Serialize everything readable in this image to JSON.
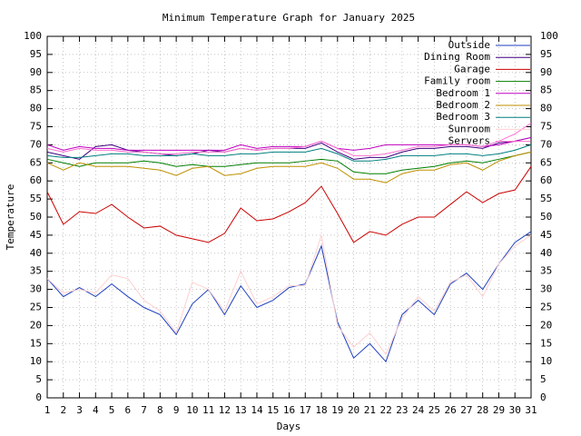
{
  "chart_data": {
    "type": "line",
    "title": "Minimum Temperature Graph for January 2025",
    "xlabel": "Days",
    "ylabel": "Temperature",
    "x": [
      1,
      2,
      3,
      4,
      5,
      6,
      7,
      8,
      9,
      10,
      11,
      12,
      13,
      14,
      15,
      16,
      17,
      18,
      19,
      20,
      21,
      22,
      23,
      24,
      25,
      26,
      27,
      28,
      29,
      30,
      31
    ],
    "xlim": [
      1,
      31
    ],
    "xticks": [
      1,
      2,
      3,
      4,
      5,
      6,
      7,
      8,
      9,
      10,
      11,
      12,
      13,
      14,
      15,
      16,
      17,
      18,
      19,
      20,
      21,
      22,
      23,
      24,
      25,
      26,
      27,
      28,
      29,
      30,
      31
    ],
    "ylim": [
      0,
      100
    ],
    "yticks": [
      0,
      5,
      10,
      15,
      20,
      25,
      30,
      35,
      40,
      45,
      50,
      55,
      60,
      65,
      70,
      75,
      80,
      85,
      90,
      95,
      100
    ],
    "y2lim": [
      0,
      100
    ],
    "y2ticks": [
      0,
      5,
      10,
      15,
      20,
      25,
      30,
      35,
      40,
      45,
      50,
      55,
      60,
      65,
      70,
      75,
      80,
      85,
      90,
      95,
      100
    ],
    "grid": true,
    "legend": "upper right",
    "series": [
      {
        "name": "Outside",
        "color": "#1f3fbf",
        "values": [
          33,
          28,
          30.5,
          28,
          31.5,
          28,
          25,
          23,
          17.5,
          26,
          30,
          23,
          31,
          25,
          27,
          30.5,
          31.5,
          42,
          21,
          11,
          15,
          10,
          23,
          27,
          23,
          31.5,
          34.5,
          30,
          37,
          43,
          46
        ]
      },
      {
        "name": "Dining Room",
        "color": "#3f007f",
        "values": [
          68,
          67,
          66,
          69.5,
          70,
          68.5,
          68,
          67.5,
          67,
          67.5,
          68.5,
          68,
          69,
          68.5,
          69,
          69,
          69,
          70.5,
          68,
          66,
          66.5,
          66.5,
          68,
          69,
          69,
          69.5,
          69.5,
          69,
          70.5,
          71,
          72
        ]
      },
      {
        "name": "Garage",
        "color": "#cc0000",
        "values": [
          57,
          48,
          51.5,
          51,
          53.5,
          50,
          47,
          47.5,
          45,
          44,
          43,
          45.5,
          52.5,
          49,
          49.5,
          51.5,
          54,
          58.5,
          51,
          43,
          46,
          45,
          48,
          50,
          50,
          53.5,
          57,
          54,
          56.5,
          57.5,
          64
        ]
      },
      {
        "name": "Family room",
        "color": "#007f00",
        "values": [
          66,
          65,
          64,
          65,
          65,
          65,
          65.5,
          65,
          64,
          64.5,
          64,
          64,
          64.5,
          65,
          65,
          65,
          65.5,
          66,
          65.5,
          62.5,
          62,
          62,
          63,
          63.5,
          64,
          65,
          65.5,
          65,
          66,
          67,
          68
        ]
      },
      {
        "name": "Bedroom 1",
        "color": "#c000c0",
        "values": [
          70,
          68.5,
          69.5,
          69,
          69,
          68.5,
          68.5,
          68.5,
          68.5,
          68.5,
          68.5,
          68.5,
          70,
          69,
          69.5,
          69.5,
          69.5,
          71,
          69,
          68.5,
          69,
          70,
          70,
          70,
          70,
          70,
          70,
          69.5,
          70,
          71,
          72
        ]
      },
      {
        "name": "Bedroom 2",
        "color": "#bf8f00",
        "values": [
          65,
          63,
          65,
          64,
          64,
          64,
          63.5,
          63,
          61.5,
          63.5,
          64,
          61.5,
          62,
          63.5,
          64,
          64,
          64,
          65,
          63.5,
          60.5,
          60.5,
          59.5,
          62,
          63,
          63,
          64.5,
          65,
          63,
          65.5,
          67,
          68
        ]
      },
      {
        "name": "Bedroom 3",
        "color": "#007f7f",
        "values": [
          67,
          66.5,
          66.5,
          67,
          67.5,
          67.5,
          67,
          67,
          67,
          67.5,
          67,
          67,
          67.5,
          67.5,
          68,
          68,
          68,
          69,
          67.5,
          65.5,
          65.5,
          66,
          67,
          67,
          67,
          67.5,
          67.5,
          67,
          67.5,
          68.5,
          70
        ]
      },
      {
        "name": "Sunroom",
        "color": "#ffd0d0",
        "values": [
          33,
          29,
          30,
          29,
          34,
          33,
          27,
          24,
          18,
          32,
          30,
          24,
          35,
          26,
          28,
          31,
          31,
          45,
          20,
          14,
          18,
          12,
          22,
          28,
          24,
          32,
          34,
          28,
          37,
          42,
          45
        ]
      },
      {
        "name": "Servers",
        "color": "#ff70d0",
        "values": [
          69,
          68,
          69,
          68.5,
          68.5,
          68,
          68,
          67.5,
          67.5,
          68,
          68,
          68,
          69,
          68.5,
          69,
          69,
          69.5,
          71,
          69,
          67,
          67,
          67.5,
          68.5,
          69.5,
          69.5,
          70,
          70,
          69.5,
          71,
          73,
          76
        ]
      }
    ]
  }
}
